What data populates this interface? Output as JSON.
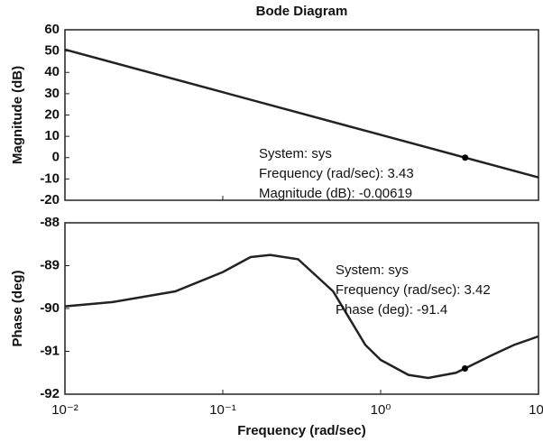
{
  "chart_data": [
    {
      "type": "line",
      "title": "Bode Diagram",
      "y_label": "Magnitude (dB)",
      "log_x": true,
      "grid": false,
      "color": "#222222",
      "xlim": [
        0.01,
        10
      ],
      "xticks": [
        0.01,
        0.1,
        1,
        10
      ],
      "ylim": [
        -20,
        60
      ],
      "yticks": [
        60,
        50,
        40,
        30,
        20,
        10,
        0,
        -10,
        -20
      ],
      "x": [
        0.01,
        0.1,
        1,
        10
      ],
      "values": [
        50.7,
        30.7,
        10.7,
        -9.3
      ],
      "marker": {
        "x": 3.43,
        "y": -0.00619
      },
      "annotation": [
        "System: sys",
        "Frequency (rad/sec): 3.43",
        "Magnitude (dB): -0.00619"
      ]
    },
    {
      "type": "line",
      "y_label": "Phase (deg)",
      "x_label": "Frequency (rad/sec)",
      "log_x": true,
      "grid": false,
      "color": "#222222",
      "xlim": [
        0.01,
        10
      ],
      "xticks": [
        {
          "value": 0.01,
          "label": "10⁻²"
        },
        {
          "value": 0.1,
          "label": "10⁻¹"
        },
        {
          "value": 1,
          "label": "10⁰"
        },
        {
          "value": 10,
          "label": "10¹"
        }
      ],
      "ylim": [
        -92,
        -88
      ],
      "yticks": [
        -88,
        -89,
        -90,
        -91,
        -92
      ],
      "x": [
        0.01,
        0.02,
        0.05,
        0.1,
        0.15,
        0.2,
        0.3,
        0.5,
        0.8,
        1,
        1.5,
        2,
        3,
        3.42,
        5,
        7,
        10
      ],
      "values": [
        -89.95,
        -89.85,
        -89.6,
        -89.15,
        -88.8,
        -88.75,
        -88.85,
        -89.6,
        -90.85,
        -91.2,
        -91.55,
        -91.62,
        -91.5,
        -91.4,
        -91.1,
        -90.85,
        -90.65
      ],
      "marker": {
        "x": 3.42,
        "y": -91.4
      },
      "annotation": [
        "System: sys",
        "Frequency (rad/sec): 3.42",
        "Phase (deg): -91.4"
      ]
    }
  ]
}
